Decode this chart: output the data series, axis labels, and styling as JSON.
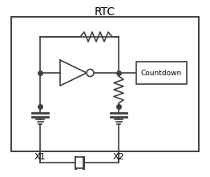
{
  "title": "RTC",
  "title_fontsize": 10,
  "countdown_label": "Countdown",
  "x1_label": "X1",
  "x2_label": "X2",
  "bg_color": "#ffffff",
  "line_color": "#404040",
  "text_color": "#000000",
  "fig_width": 2.62,
  "fig_height": 2.21,
  "dpi": 100
}
